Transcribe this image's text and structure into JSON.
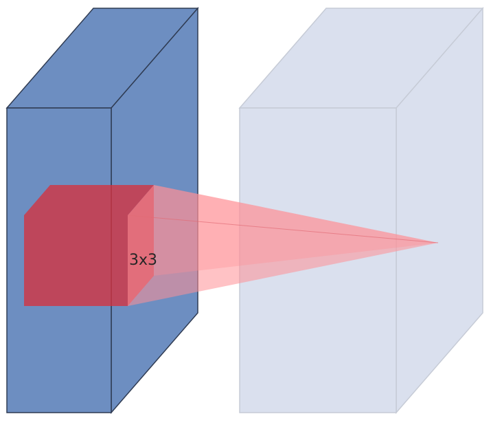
{
  "kernel": {
    "label": "3x3"
  },
  "colors": {
    "input_block_front": "#6d8ec1",
    "input_block_side": "#6d8ec1",
    "input_block_top": "#6d8ec1",
    "input_block_stroke": "#2f3b52",
    "output_block_fill": "#dae0ee",
    "output_block_stroke": "#c6cbd6",
    "kernel_fill": "#d5323f",
    "projection_fill": "#ff8f96"
  }
}
